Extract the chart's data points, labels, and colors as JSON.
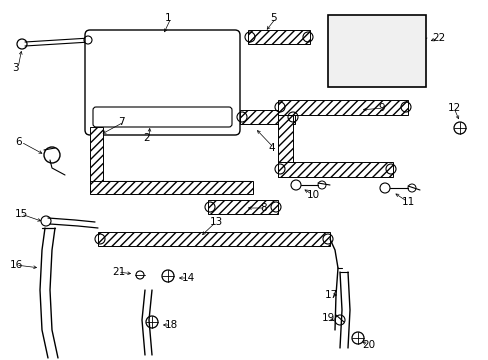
{
  "background_color": "#ffffff",
  "line_color": "#000000",
  "fig_width": 4.89,
  "fig_height": 3.6,
  "dpi": 100,
  "xlim": [
    0,
    489
  ],
  "ylim": [
    0,
    360
  ]
}
